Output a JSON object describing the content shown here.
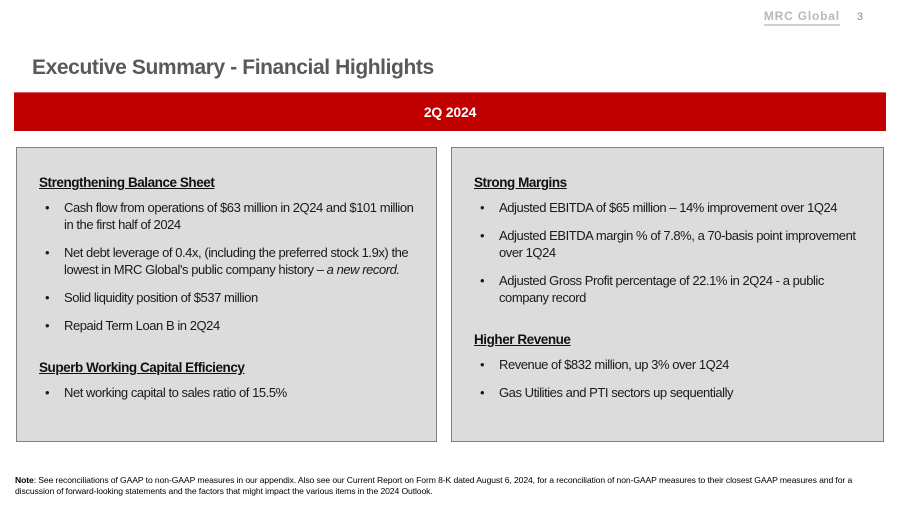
{
  "header": {
    "logo": "MRC Global",
    "page_number": "3",
    "title": "Executive Summary - Financial Highlights"
  },
  "banner": {
    "label": "2Q 2024"
  },
  "glyphs": {
    "bullet": "•"
  },
  "colors": {
    "banner_red": "#C00000",
    "panel_bg": "#DCDCDC",
    "panel_border": "#808080",
    "title_gray": "#595959"
  },
  "left_panel": {
    "section1": {
      "heading": "Strengthening Balance Sheet",
      "b1": "Cash flow from operations of $63 million in 2Q24 and $101 million in the first half of 2024",
      "b2_text": "Net debt leverage of 0.4x, (including the preferred stock 1.9x) the lowest in MRC Global's public company history – ",
      "b2_italic": "a new record.",
      "b3": "Solid liquidity position of $537 million",
      "b4": "Repaid Term Loan B in 2Q24"
    },
    "section2": {
      "heading": "Superb Working Capital Efficiency",
      "b1": "Net working capital to sales ratio of 15.5%"
    }
  },
  "right_panel": {
    "section1": {
      "heading": "Strong Margins",
      "b1": "Adjusted EBITDA of $65 million – 14% improvement over 1Q24",
      "b2": "Adjusted EBITDA margin % of 7.8%, a 70-basis point improvement over 1Q24",
      "b3": "Adjusted Gross Profit percentage of 22.1% in 2Q24 -  a public company record"
    },
    "section2": {
      "heading": "Higher Revenue",
      "b1": "Revenue of $832 million, up 3% over 1Q24",
      "b2": "Gas Utilities and PTI sectors up sequentially"
    }
  },
  "footnote": {
    "label": "Note",
    "text": ": See reconciliations of GAAP to non-GAAP measures in our appendix. Also see our Current Report on Form 8-K dated August 6, 2024, for a reconciliation of non-GAAP measures to their closest GAAP measures and for a discussion of forward-looking statements and the factors that might impact the various items in the 2024 Outlook."
  }
}
